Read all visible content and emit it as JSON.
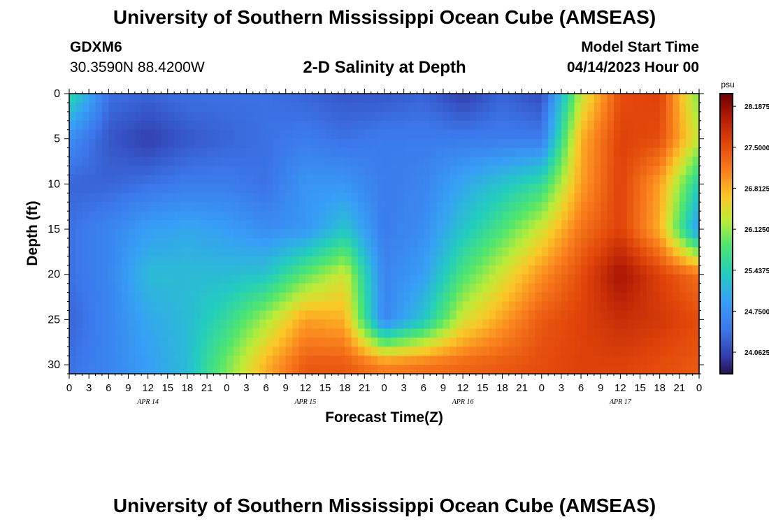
{
  "header": {
    "title": "University of Southern Mississippi Ocean Cube (AMSEAS)",
    "station_id": "GDXM6",
    "coordinates": "30.3590N  88.4200W",
    "plot_title": "2-D Salinity at Depth",
    "model_start_label": "Model Start Time",
    "model_start_value": "04/14/2023 Hour 00"
  },
  "footer": {
    "title": "University of Southern Mississippi Ocean Cube (AMSEAS)"
  },
  "chart_data": {
    "type": "heatmap",
    "title": "2-D Salinity at Depth",
    "xlabel": "Forecast Time(Z)",
    "ylabel": "Depth (ft)",
    "xlim": [
      0,
      96
    ],
    "ylim": [
      31,
      0
    ],
    "x_tick_labels": [
      "0",
      "3",
      "6",
      "9",
      "12",
      "15",
      "18",
      "21",
      "0",
      "3",
      "6",
      "9",
      "12",
      "15",
      "18",
      "21",
      "0",
      "3",
      "6",
      "9",
      "12",
      "15",
      "18",
      "21",
      "0",
      "3",
      "6",
      "9",
      "12",
      "15",
      "18",
      "21",
      "0"
    ],
    "date_labels": [
      {
        "label": "APR 14",
        "hour": 12
      },
      {
        "label": "APR 15",
        "hour": 36
      },
      {
        "label": "APR 16",
        "hour": 60
      },
      {
        "label": "APR 17",
        "hour": 84
      }
    ],
    "y_ticks": [
      0,
      5,
      10,
      15,
      20,
      25,
      30
    ],
    "colorbar": {
      "unit": "psu",
      "min": 23.7,
      "max": 28.4,
      "tick_labels": [
        "28.1875",
        "27.5000",
        "26.8125",
        "26.1250",
        "25.4375",
        "24.7500",
        "24.0625"
      ],
      "tick_values": [
        28.1875,
        27.5,
        26.8125,
        26.125,
        25.4375,
        24.75,
        24.0625
      ]
    },
    "depth_levels_ft": [
      0,
      5,
      10,
      15,
      20,
      25,
      30
    ],
    "hour_samples": [
      0,
      6,
      12,
      18,
      24,
      30,
      36,
      42,
      48,
      54,
      60,
      66,
      72,
      78,
      84,
      90,
      96
    ],
    "values": [
      [
        25.6,
        24.4,
        24.3,
        24.4,
        24.4,
        24.4,
        24.3,
        24.2,
        24.2,
        24.3,
        24.0,
        24.3,
        24.1,
        26.3,
        27.5,
        27.6,
        26.0
      ],
      [
        24.7,
        24.2,
        24.0,
        24.2,
        24.3,
        24.4,
        24.5,
        24.4,
        24.5,
        24.5,
        24.5,
        24.5,
        24.5,
        26.8,
        27.6,
        27.5,
        26.3
      ],
      [
        24.3,
        24.3,
        24.4,
        24.5,
        24.5,
        24.4,
        24.8,
        24.8,
        24.5,
        24.6,
        25.0,
        25.3,
        25.6,
        26.9,
        27.6,
        26.9,
        25.4
      ],
      [
        24.4,
        24.6,
        24.9,
        25.0,
        24.9,
        24.7,
        24.8,
        25.3,
        24.5,
        24.7,
        25.3,
        25.8,
        26.4,
        27.2,
        27.6,
        26.8,
        24.8
      ],
      [
        24.4,
        24.6,
        25.2,
        25.2,
        25.2,
        25.3,
        25.9,
        26.4,
        24.6,
        24.9,
        25.8,
        26.4,
        27.0,
        27.5,
        28.1,
        27.6,
        27.2
      ],
      [
        24.3,
        24.6,
        25.0,
        25.2,
        25.6,
        26.2,
        26.9,
        26.8,
        24.6,
        25.3,
        26.4,
        26.9,
        27.4,
        27.6,
        27.8,
        27.7,
        27.5
      ],
      [
        24.4,
        24.6,
        24.9,
        25.2,
        26.0,
        26.8,
        27.4,
        27.4,
        27.1,
        27.2,
        27.3,
        27.4,
        27.5,
        27.6,
        27.6,
        27.5,
        27.4
      ]
    ]
  }
}
